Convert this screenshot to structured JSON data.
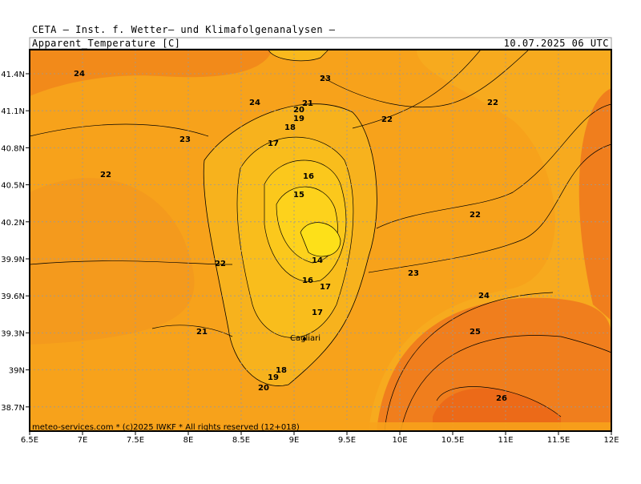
{
  "header": {
    "title": "CETA — Inst. f. Wetter— und Klimafolgenanalysen —",
    "variable": "Apparent_Temperature [C]",
    "valid": "10.07.2025 06 UTC"
  },
  "footer": "meteo-services.com * (c)2025 IWKF * All rights reserved (12+018)",
  "place": "Cagliari",
  "lon_labels": [
    "6.5E",
    "7E",
    "7.5E",
    "8E",
    "8.5E",
    "9E",
    "9.5E",
    "10E",
    "10.5E",
    "11E",
    "11.5E",
    "12E"
  ],
  "lat_labels": [
    "41.4N",
    "41.1N",
    "40.8N",
    "40.5N",
    "40.2N",
    "39.9N",
    "39.6N",
    "39.3N",
    "39N",
    "38.7N"
  ],
  "contour_labels": [
    24,
    24,
    23,
    21,
    20,
    19,
    18,
    22,
    22,
    23,
    17,
    22,
    16,
    15,
    22,
    14,
    22,
    23,
    16,
    17,
    24,
    17,
    21,
    25,
    18,
    19,
    20,
    26
  ]
}
